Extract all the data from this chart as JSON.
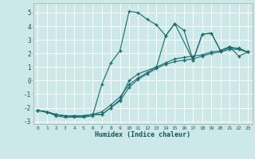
{
  "xlabel": "Humidex (Indice chaleur)",
  "ylabel": "",
  "bg_color": "#cce8e8",
  "grid_color": "#ffffff",
  "line_color": "#1a6b6b",
  "xlim": [
    -0.5,
    23.5
  ],
  "ylim": [
    -3.2,
    5.7
  ],
  "xticks": [
    0,
    1,
    2,
    3,
    4,
    5,
    6,
    7,
    8,
    9,
    10,
    11,
    12,
    13,
    14,
    15,
    16,
    17,
    18,
    19,
    20,
    21,
    22,
    23
  ],
  "yticks": [
    -3,
    -2,
    -1,
    0,
    1,
    2,
    3,
    4,
    5
  ],
  "series": [
    {
      "x": [
        0,
        1,
        2,
        3,
        4,
        5,
        6,
        7,
        8,
        9,
        10,
        11,
        12,
        13,
        14,
        15,
        16,
        17,
        18,
        19,
        20,
        21,
        22,
        23
      ],
      "y": [
        -2.2,
        -2.3,
        -2.6,
        -2.7,
        -2.7,
        -2.7,
        -2.6,
        -0.3,
        1.3,
        2.2,
        5.1,
        5.0,
        4.5,
        4.1,
        3.3,
        4.2,
        3.7,
        1.5,
        3.4,
        3.5,
        2.2,
        2.5,
        1.8,
        2.1
      ]
    },
    {
      "x": [
        0,
        1,
        2,
        3,
        4,
        5,
        6,
        7,
        8,
        9,
        10,
        11,
        12,
        13,
        14,
        15,
        16,
        17,
        18,
        19,
        20,
        21,
        22,
        23
      ],
      "y": [
        -2.2,
        -2.3,
        -2.5,
        -2.6,
        -2.6,
        -2.6,
        -2.5,
        -2.5,
        -2.0,
        -1.5,
        -0.5,
        0.1,
        0.5,
        0.9,
        1.2,
        1.4,
        1.5,
        1.6,
        1.8,
        2.0,
        2.1,
        2.3,
        2.3,
        2.1
      ]
    },
    {
      "x": [
        0,
        1,
        2,
        3,
        4,
        5,
        6,
        7,
        8,
        9,
        10,
        11,
        12,
        13,
        14,
        15,
        16,
        17,
        18,
        19,
        20,
        21,
        22,
        23
      ],
      "y": [
        -2.2,
        -2.3,
        -2.5,
        -2.6,
        -2.6,
        -2.6,
        -2.5,
        -2.3,
        -1.8,
        -1.2,
        -0.3,
        0.2,
        0.6,
        1.0,
        1.3,
        1.6,
        1.7,
        1.8,
        1.9,
        2.1,
        2.2,
        2.4,
        2.4,
        2.1
      ]
    },
    {
      "x": [
        0,
        2,
        3,
        4,
        5,
        6,
        7,
        8,
        9,
        10,
        11,
        13,
        14,
        15,
        17,
        18,
        19,
        20,
        21,
        23
      ],
      "y": [
        -2.2,
        -2.5,
        -2.6,
        -2.6,
        -2.6,
        -2.5,
        -2.5,
        -2.0,
        -1.4,
        0.0,
        0.5,
        1.0,
        3.3,
        4.2,
        1.5,
        3.4,
        3.5,
        2.2,
        2.5,
        2.1
      ]
    }
  ]
}
